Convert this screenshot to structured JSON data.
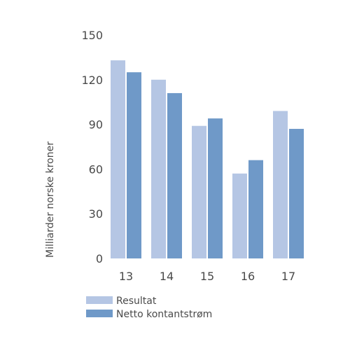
{
  "chart_data": {
    "type": "bar",
    "title": "",
    "xlabel": "",
    "ylabel": "Milliarder norske kroner",
    "categories": [
      "13",
      "14",
      "15",
      "16",
      "17"
    ],
    "series": [
      {
        "name": "Resultat",
        "values": [
          133,
          120,
          89,
          57,
          99
        ],
        "color": "#b5c6e4"
      },
      {
        "name": "Netto kontantstrøm",
        "values": [
          125,
          111,
          94,
          66,
          87
        ],
        "color": "#6f99c8"
      }
    ],
    "ylim": [
      0,
      150
    ],
    "yticks": [
      "0",
      "30",
      "60",
      "90",
      "120",
      "150"
    ],
    "grid": false,
    "legend_position": "bottom-left"
  }
}
